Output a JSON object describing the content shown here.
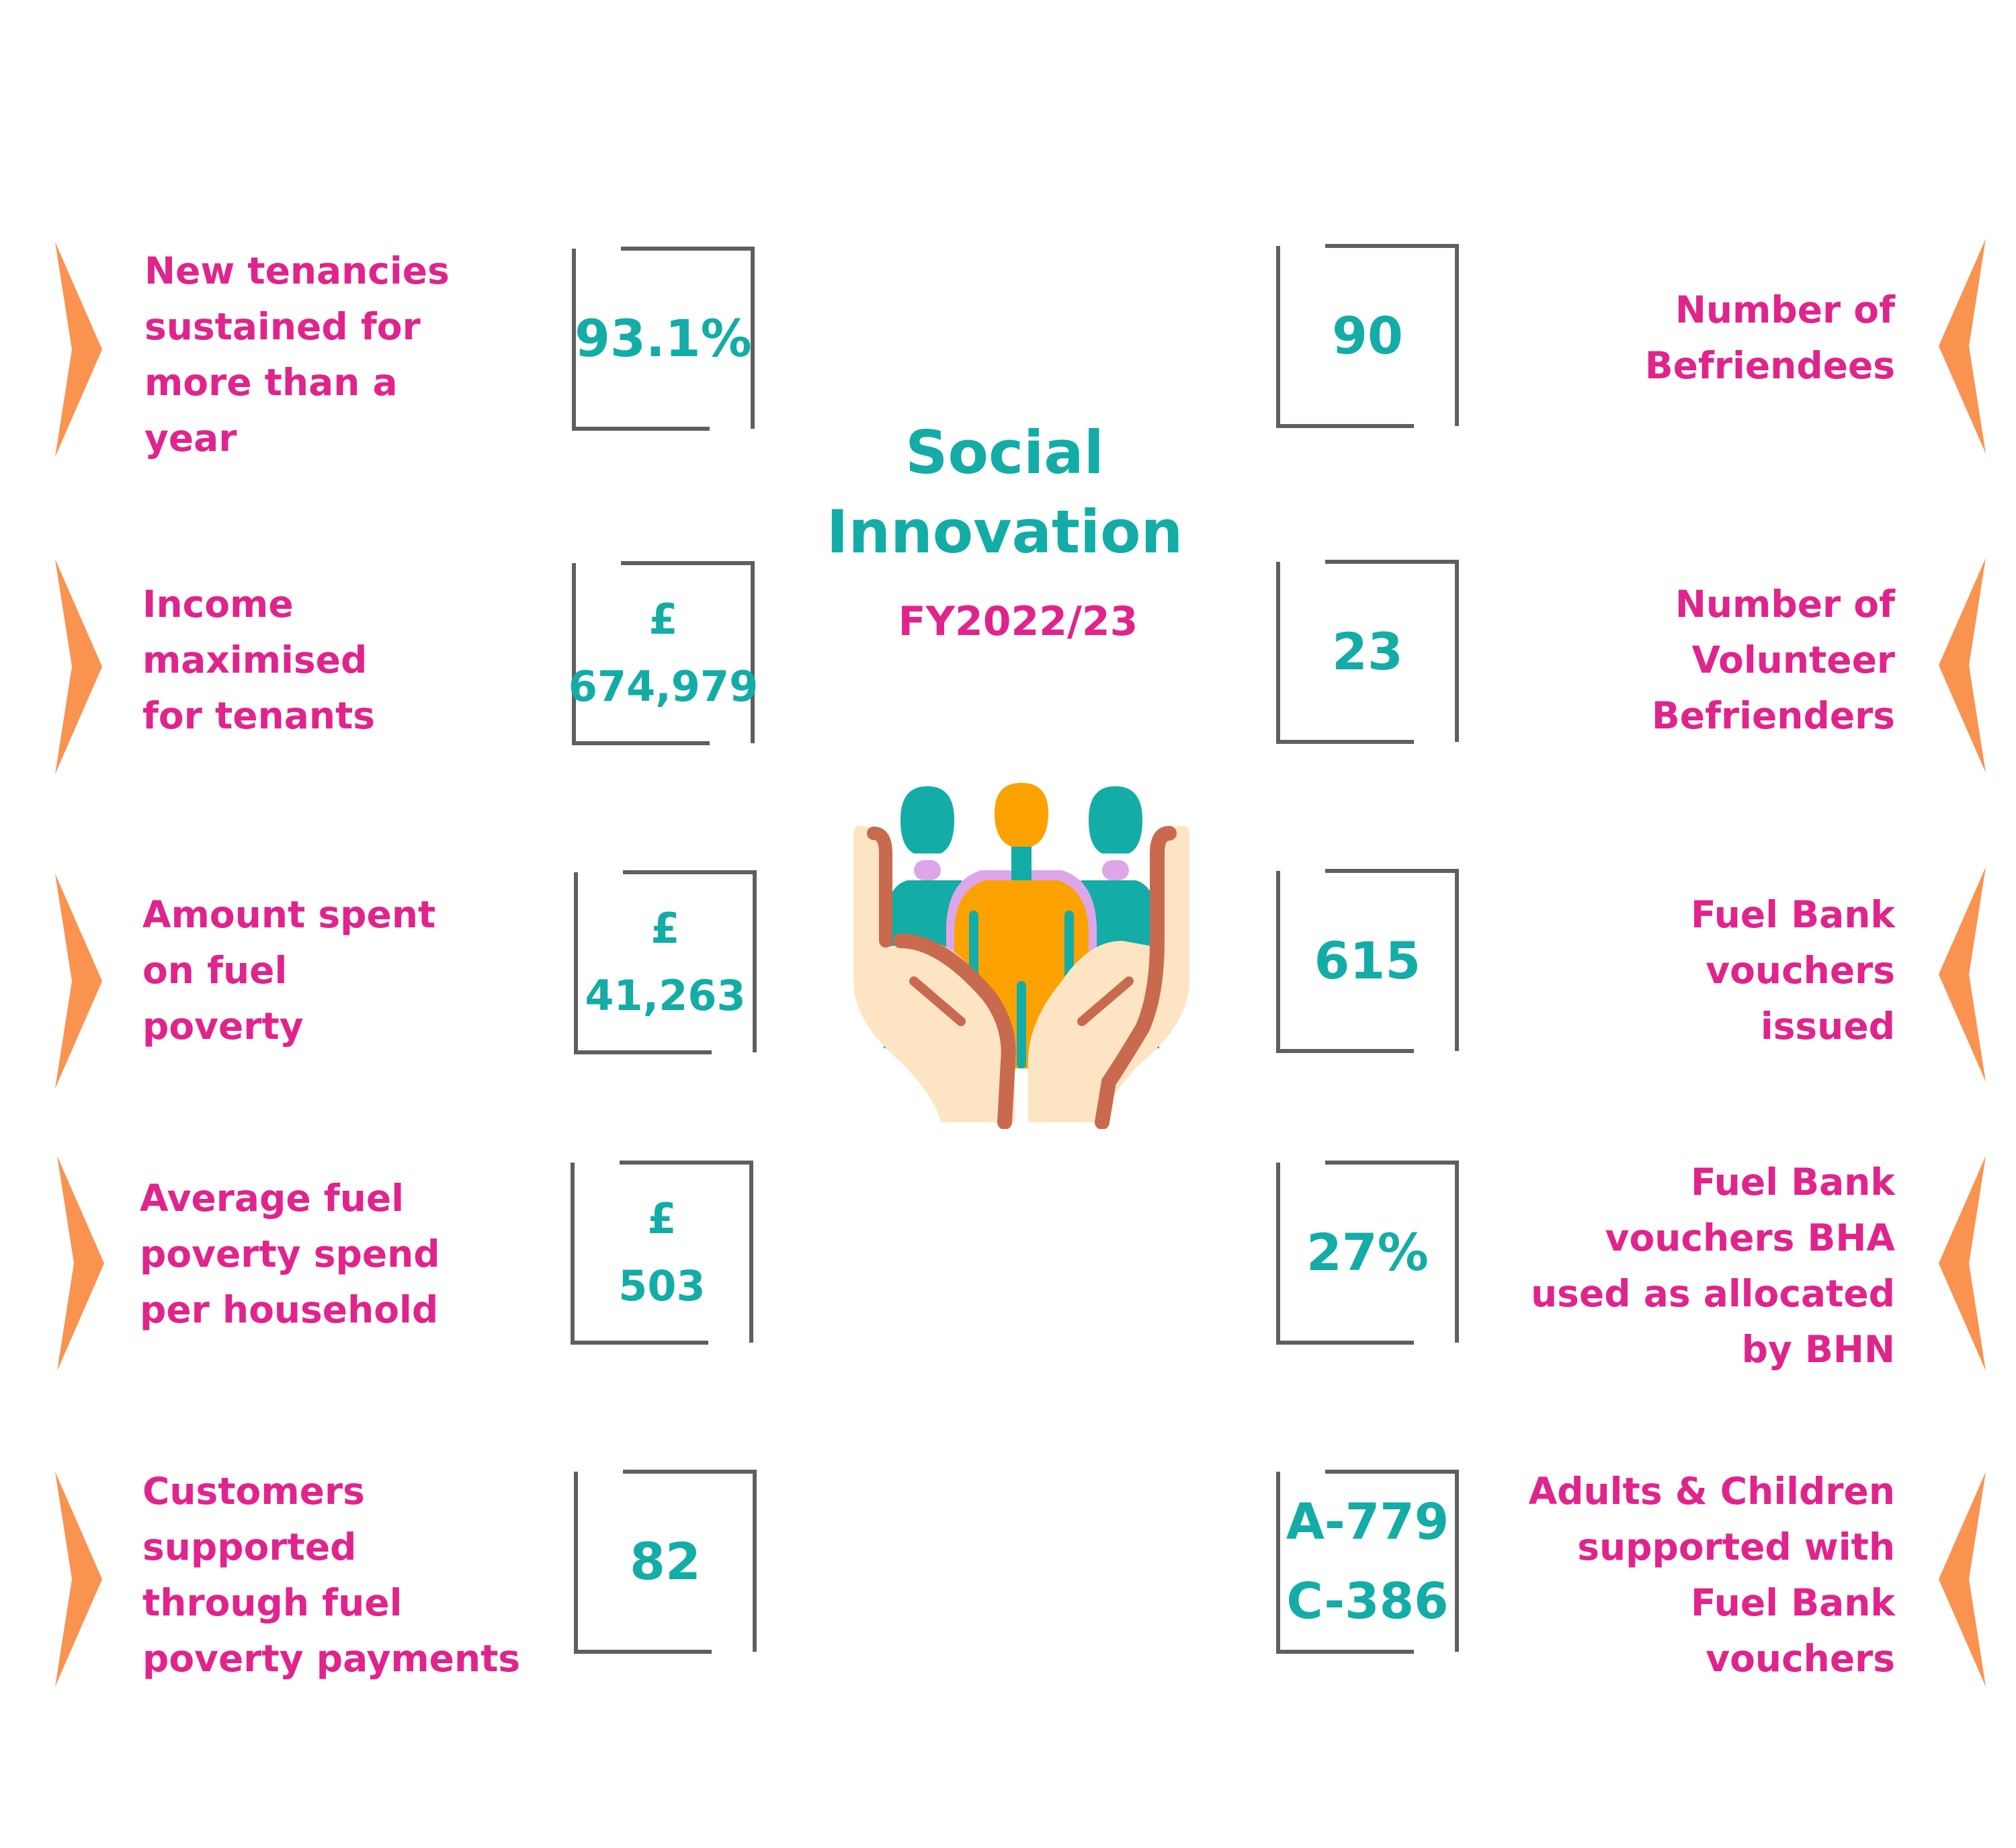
{
  "header": {
    "title": "Social\nInnovation",
    "subtitle": "FY2022/23"
  },
  "colors": {
    "label_text": "#e0248c",
    "value_text": "#13aca6",
    "chevron": "#fa9250",
    "frame": "#5f5f5f"
  },
  "illustration": {
    "icon": "hands-holding-people-icon"
  },
  "left_stats": [
    {
      "label": "New tenancies\nsustained for\nmore than a\nyear",
      "value": "93.1%"
    },
    {
      "label": "Income\nmaximised\nfor tenants",
      "value": "£\n674,979"
    },
    {
      "label": "Amount spent\non fuel\npoverty",
      "value": "£\n41,263"
    },
    {
      "label": "Average fuel\npoverty spend\nper household",
      "value": "£\n503"
    },
    {
      "label": "Customers\nsupported\nthrough fuel\npoverty payments",
      "value": "82"
    }
  ],
  "right_stats": [
    {
      "label": "Number of\nBefriendees",
      "value": "90"
    },
    {
      "label": "Number of\nVolunteer\nBefrienders",
      "value": "23"
    },
    {
      "label": "Fuel Bank\nvouchers\nissued",
      "value": "615"
    },
    {
      "label": "Fuel Bank\nvouchers BHA\nused as allocated\nby BHN",
      "value": "27%"
    },
    {
      "label": "Adults & Children\nsupported with\nFuel Bank\nvouchers",
      "value": "A-779\nC-386"
    }
  ]
}
